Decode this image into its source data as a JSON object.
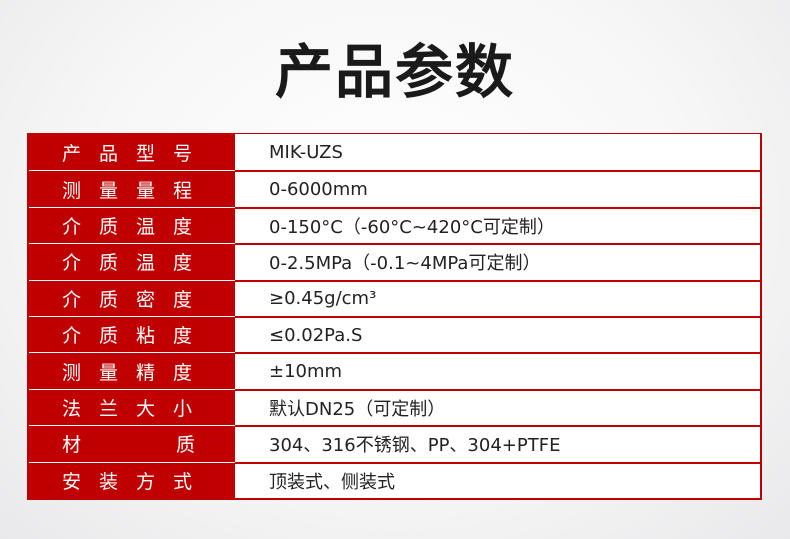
{
  "title": "产品参数",
  "accent_color": "#c00000",
  "rows": [
    {
      "label": "产品型号",
      "value": "MIK-UZS"
    },
    {
      "label": "测量量程",
      "value": "0-6000mm"
    },
    {
      "label": "介质温度",
      "value": "0-150°C（-60°C~420°C可定制）"
    },
    {
      "label": "介质温度",
      "value": "0-2.5MPa（-0.1~4MPa可定制）"
    },
    {
      "label": "介质密度",
      "value": "≥0.45g/cm³"
    },
    {
      "label": "介质粘度",
      "value": "≤0.02Pa.S"
    },
    {
      "label": "测量精度",
      "value": "±10mm"
    },
    {
      "label": "法兰大小",
      "value": "默认DN25（可定制）"
    },
    {
      "label": "材质",
      "value": "304、316不锈钢、PP、304+PTFE"
    },
    {
      "label": "安装方式",
      "value": "顶装式、侧装式"
    }
  ]
}
